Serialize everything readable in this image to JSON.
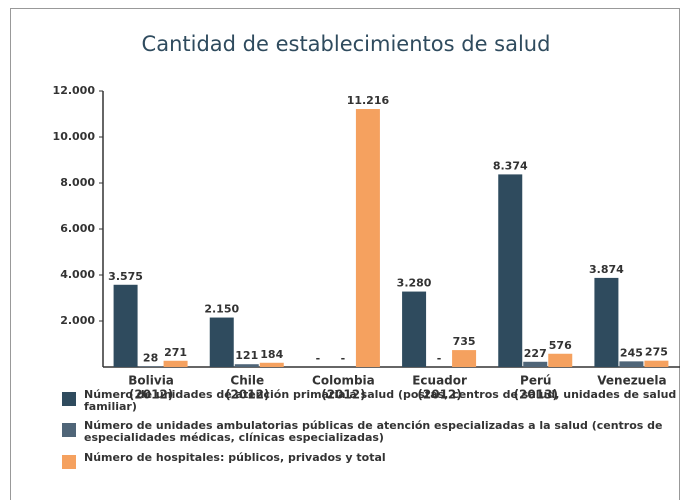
{
  "chart_data": {
    "type": "bar",
    "title": "Cantidad de establecimientos de salud",
    "categories": [
      [
        "Bolivia",
        "(2012)"
      ],
      [
        "Chile",
        "(2012)"
      ],
      [
        "Colombia",
        "(2012)"
      ],
      [
        "Ecuador",
        "(2012)"
      ],
      [
        "Perú",
        "(2013)"
      ],
      [
        "Venezuela"
      ]
    ],
    "series": [
      {
        "name": "Número de unidades de atención primaria a salud (postas, centros de salud, unidades de salud familiar)",
        "color": "#2f4b5e",
        "values": [
          3575,
          2150,
          null,
          3280,
          8374,
          3874
        ],
        "value_labels": [
          "3.575",
          "2.150",
          "-",
          "3.280",
          "8.374",
          "3.874"
        ]
      },
      {
        "name": "Número de unidades ambulatorias públicas de atención especializadas a la salud (centros de especialidades médicas, clínicas especializadas)",
        "color": "#4f6578",
        "values": [
          28,
          121,
          null,
          null,
          227,
          245
        ],
        "value_labels": [
          "28",
          "121",
          "-",
          "-",
          "227",
          "245"
        ]
      },
      {
        "name": "Número de hospitales: públicos, privados y total",
        "color": "#f5a15f",
        "values": [
          271,
          184,
          11216,
          735,
          576,
          275
        ],
        "value_labels": [
          "271",
          "184",
          "11.216",
          "735",
          "576",
          "275"
        ]
      }
    ],
    "ylim": [
      0,
      12000
    ],
    "yticks": [
      {
        "value": 2000,
        "label": "2.000"
      },
      {
        "value": 4000,
        "label": "4.000"
      },
      {
        "value": 6000,
        "label": "6.000"
      },
      {
        "value": 8000,
        "label": "8.000"
      },
      {
        "value": 10000,
        "label": "10.000"
      },
      {
        "value": 12000,
        "label": "12.000"
      }
    ]
  }
}
